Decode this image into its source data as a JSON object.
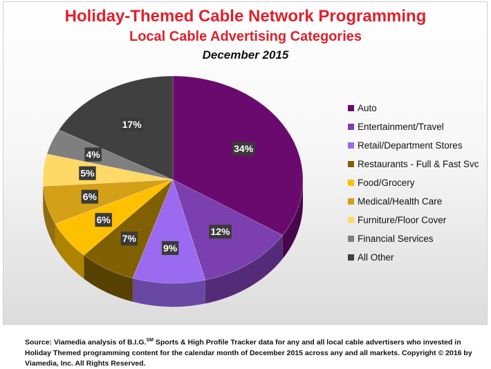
{
  "chart_data": {
    "type": "pie",
    "title": "Holiday-Themed Cable Network Programming",
    "subtitle": "Local Cable Advertising Categories",
    "date_label": "December 2015",
    "legend_position": "right",
    "slices": [
      {
        "name": "Auto",
        "value": 34,
        "label": "34%",
        "color": "#6a0a6e"
      },
      {
        "name": "Entertainment/Travel",
        "value": 12,
        "label": "12%",
        "color": "#7c3fb0"
      },
      {
        "name": "Retail/Department Stores",
        "value": 9,
        "label": "9%",
        "color": "#9a6af0"
      },
      {
        "name": "Restaurants - Full & Fast Svc",
        "value": 7,
        "label": "7%",
        "color": "#806000"
      },
      {
        "name": "Food/Grocery",
        "value": 6,
        "label": "6%",
        "color": "#ffc000"
      },
      {
        "name": "Medical/Health Care",
        "value": 6,
        "label": "6%",
        "color": "#d4a017"
      },
      {
        "name": "Furniture/Floor Cover",
        "value": 5,
        "label": "5%",
        "color": "#ffd966"
      },
      {
        "name": "Financial Services",
        "value": 4,
        "label": "4%",
        "color": "#7f7f7f"
      },
      {
        "name": "All Other",
        "value": 17,
        "label": "17%",
        "color": "#404040"
      }
    ]
  },
  "source": {
    "prefix": "Source: Viamedia analysis of B.I.G.",
    "sup": "SM",
    "rest": "  Sports & High Profile Tracker data for any and all local cable advertisers who invested in Holiday Themed programming content for the calendar month of December 2015 across any and all markets. Copyright © 2016 by Viamedia, Inc. All Rights Reserved."
  }
}
